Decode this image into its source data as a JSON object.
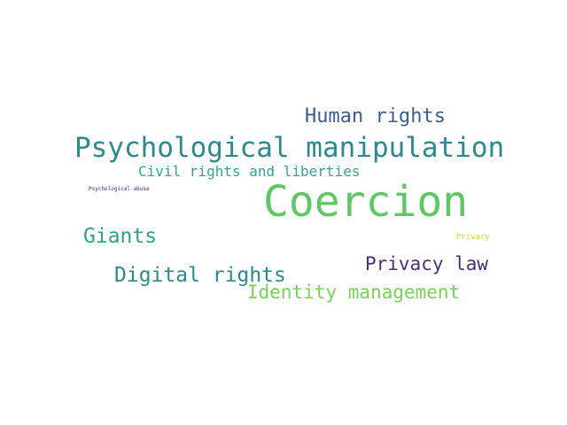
{
  "words": [
    {
      "text": "Coercion",
      "color": "#5ec962",
      "weight": 1.0
    },
    {
      "text": "Psychological manipulation",
      "color": "#2c8a8e",
      "weight": 0.72
    },
    {
      "text": "Human rights",
      "color": "#3b5d8e",
      "weight": 0.52
    },
    {
      "text": "Civil rights and liberties",
      "color": "#34a58a",
      "weight": 0.36
    },
    {
      "text": "Giants",
      "color": "#2ea08e",
      "weight": 0.5
    },
    {
      "text": "Digital rights",
      "color": "#2d8a8c",
      "weight": 0.5
    },
    {
      "text": "Privacy law",
      "color": "#48307a",
      "weight": 0.48
    },
    {
      "text": "Identity management",
      "color": "#7ad15a",
      "weight": 0.48
    },
    {
      "text": "Psychological abuse",
      "color": "#46217a",
      "weight": 0.1
    },
    {
      "text": "Privacy",
      "color": "#d9dc2a",
      "weight": 0.14
    }
  ]
}
